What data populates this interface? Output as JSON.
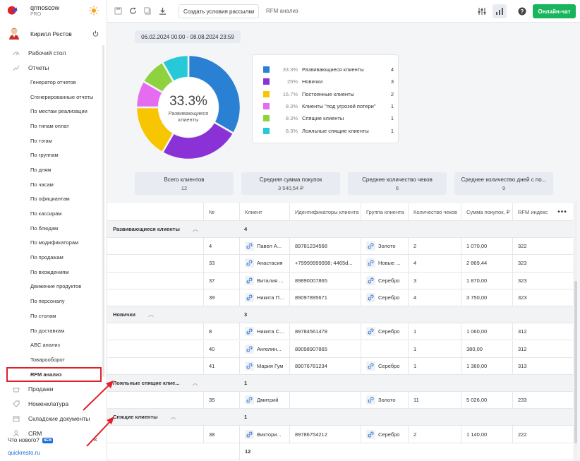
{
  "brand": {
    "company": "qrmoscow",
    "plan": "PRO"
  },
  "user": {
    "name": "Кирилл Рестов"
  },
  "nav": {
    "main_top": [
      {
        "label": "Рабочий стол",
        "icon": "speedometer-icon"
      },
      {
        "label": "Отчеты",
        "icon": "chart-icon"
      }
    ],
    "reports": [
      "Генератор отчетов",
      "Сгенерированные отчеты",
      "По местам реализации",
      "По типам оплат",
      "По тэгам",
      "По группам",
      "По дням",
      "По часам",
      "По официантам",
      "По кассирам",
      "По блюдам",
      "По модификаторам",
      "По продажам",
      "По вхождениям",
      "Движение продуктов",
      "По персоналу",
      "По столам",
      "По доставкам",
      "ABC анализ",
      "Товарооборот",
      "RFM анализ"
    ],
    "main_bottom": [
      {
        "label": "Продажи",
        "icon": "basket-icon"
      },
      {
        "label": "Номенклатура",
        "icon": "tag-icon"
      },
      {
        "label": "Складские документы",
        "icon": "box-icon"
      },
      {
        "label": "CRM",
        "icon": "person-icon"
      }
    ]
  },
  "whats_new": {
    "label": "Что нового?",
    "badge": "NEW"
  },
  "footer_link": "quickresto.ru",
  "toolbar": {
    "create_button": "Создать условия рассылки",
    "page_name": "RFM анализ",
    "online_chat": "Онлайн-чат"
  },
  "date_range": "06.02.2024 00:00 - 08.08.2024 23:59",
  "donut": {
    "center_value": "33.3%",
    "center_label_line1": "Развивающиеся",
    "center_label_line2": "клиенты"
  },
  "chart_data": {
    "type": "pie",
    "categories": [
      "Развивающиеся клиенты",
      "Новички",
      "Постоянные клиенты",
      "Клиенты \"под угрозой потери\"",
      "Спящие клиенты",
      "Лояльные спящие клиенты"
    ],
    "values": [
      4,
      3,
      2,
      1,
      1,
      1
    ],
    "percents": [
      "33.3%",
      "25%",
      "16.7%",
      "8.3%",
      "8.3%",
      "8.3%"
    ],
    "colors": [
      "#2a80d2",
      "#8b32d6",
      "#f7c600",
      "#e56cf0",
      "#8fd240",
      "#27c8d8"
    ]
  },
  "stats": [
    {
      "label": "Всего клиентов",
      "value": "12"
    },
    {
      "label": "Средняя сумма покупок",
      "value": "3 540,54 ₽"
    },
    {
      "label": "Среднее количество чеков",
      "value": "6"
    },
    {
      "label": "Среднее количество дней с по...",
      "value": "9"
    }
  ],
  "table": {
    "columns": [
      "№",
      "Клиент",
      "Идентификаторы клиента",
      "Группа клиента",
      "Количество чеков",
      "Сумма покупок, ₽",
      "RFM индекс"
    ],
    "groups": [
      {
        "name": "Развивающиеся клиенты",
        "count": "4",
        "rows": [
          [
            "4",
            "Павел А...",
            "89781234568",
            "Золото",
            "2",
            "1 070,00",
            "322"
          ],
          [
            "33",
            "Анастасия",
            "+79999999998; 4465d...",
            "Новые ...",
            "4",
            "2 869,44",
            "323"
          ],
          [
            "37",
            "Виталия ...",
            "89890007865",
            "Серебро",
            "3",
            "1 870,00",
            "323"
          ],
          [
            "39",
            "Никита П...",
            "89097895671",
            "Серебро",
            "4",
            "3 750,00",
            "323"
          ]
        ]
      },
      {
        "name": "Новички",
        "count": "3",
        "rows": [
          [
            "8",
            "Никита С...",
            "89784561478",
            "Серебро",
            "1",
            "1 060,00",
            "312"
          ],
          [
            "40",
            "Ангелин...",
            "89098907865",
            "",
            "1",
            "380,00",
            "312"
          ],
          [
            "41",
            "Мария Гум",
            "89076781234",
            "Серебро",
            "1",
            "1 360,00",
            "313"
          ]
        ]
      },
      {
        "name": "Лояльные спящие клие...",
        "count": "1",
        "rows": [
          [
            "35",
            "Дмитрий",
            "",
            "Золото",
            "11",
            "5 026,00",
            "233"
          ]
        ]
      },
      {
        "name": "Спящие клиенты",
        "count": "1",
        "rows": [
          [
            "38",
            "Виктори...",
            "89786754212",
            "Серебро",
            "2",
            "1 140,00",
            "222"
          ]
        ]
      }
    ],
    "total": "12"
  }
}
